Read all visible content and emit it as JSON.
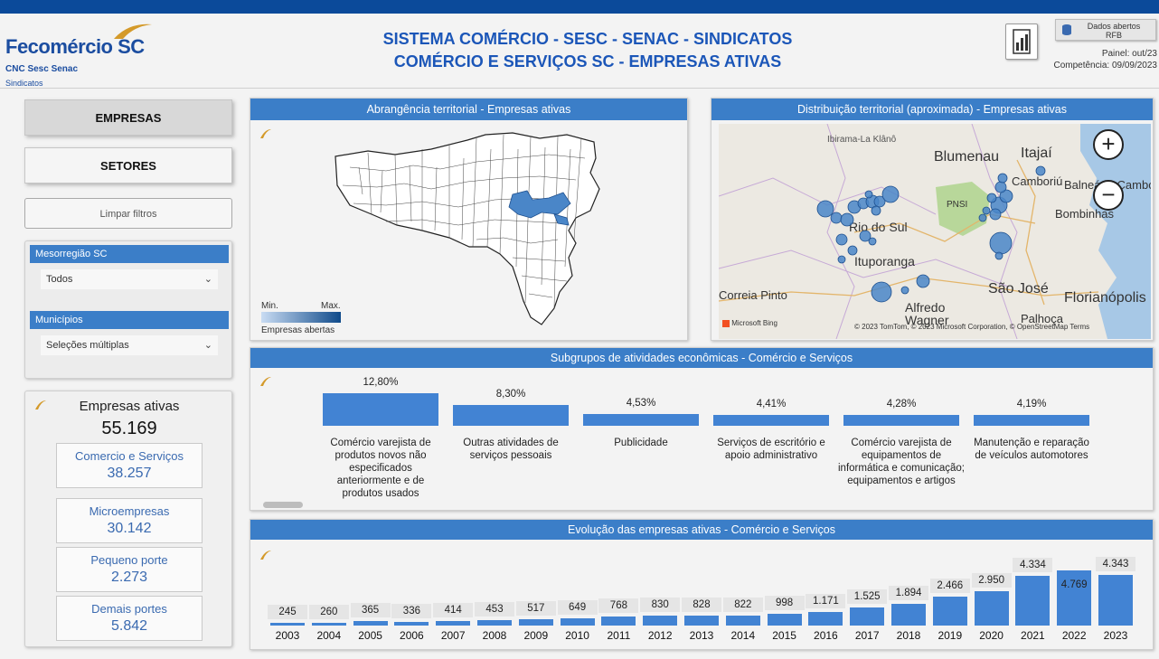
{
  "header": {
    "logo_name": "Fecomércio",
    "logo_sc": "SC",
    "logo_sub": "CNC Sesc Senac",
    "logo_sub2": "Sindicatos",
    "title_line1": "SISTEMA COMÉRCIO - SESC - SENAC - SINDICATOS",
    "title_line2": "COMÉRCIO E SERVIÇOS SC - EMPRESAS ATIVAS",
    "rfb_line1": "Dados abertos",
    "rfb_line2": "RFB",
    "painel": "Painel: out/23",
    "competencia": "Competência: 09/09/2023",
    "calc_icon": "report-calculator-icon",
    "db_icon": "database-icon"
  },
  "nav": {
    "empresas": "EMPRESAS",
    "setores": "SETORES",
    "limpar": "Limpar filtros"
  },
  "filters": {
    "meso_label": "Mesorregião SC",
    "meso_value": "Todos",
    "mun_label": "Municípios",
    "mun_value": "Seleções múltiplas"
  },
  "kpi": {
    "title": "Empresas ativas",
    "total": "55.169",
    "cards": [
      {
        "label": "Comercio e Serviços",
        "value": "38.257"
      },
      {
        "label": "Microempresas",
        "value": "30.142"
      },
      {
        "label": "Pequeno porte",
        "value": "2.273"
      },
      {
        "label": "Demais portes",
        "value": "5.842"
      }
    ]
  },
  "map1": {
    "title": "Abrangência territorial - Empresas ativas",
    "legend_min": "Min.",
    "legend_max": "Max.",
    "legend_caption": "Empresas abertas",
    "logo": "SC"
  },
  "map2": {
    "title": "Distribuição territorial (aproximada) - Empresas ativas",
    "places": [
      "Ibirama-La Klânô",
      "Blumenau",
      "Itajaí",
      "Camboriú",
      "Balneário Camboriú",
      "PNSI",
      "Bombinhas",
      "Rio do Sul",
      "Ituporanga",
      "Correia Pinto",
      "São José",
      "Florianópolis",
      "Alfredo Wagner",
      "Palhoça"
    ],
    "attrib_left": "Microsoft Bing",
    "attrib_right": "© 2023 TomTom, © 2023 Microsoft Corporation, © OpenStreetMap  Terms",
    "zoom_in": "+",
    "zoom_out": "−",
    "logo": "SC"
  },
  "subgroups": {
    "title": "Subgrupos de atividades econômicas - Comércio e Serviços",
    "logo": "SC"
  },
  "evolution": {
    "title": "Evolução das empresas ativas - Comércio e Serviços",
    "logo": "SC"
  },
  "chart_data": [
    {
      "type": "bar",
      "title": "Subgrupos de atividades econômicas - Comércio e Serviços",
      "categories": [
        "Comércio varejista de produtos novos não especificados anteriormente e de produtos usados",
        "Outras atividades de serviços pessoais",
        "Publicidade",
        "Serviços de escritório e apoio administrativo",
        "Comércio varejista de equipamentos de informática e comunicação; equipamentos e artigos",
        "Manutenção e reparação de veículos automotores"
      ],
      "values": [
        12.8,
        8.3,
        4.53,
        4.41,
        4.28,
        4.19
      ],
      "value_labels": [
        "12,80%",
        "8,30%",
        "4,53%",
        "4,41%",
        "4,28%",
        "4,19%"
      ]
    },
    {
      "type": "bar",
      "title": "Evolução das empresas ativas - Comércio e Serviços",
      "categories": [
        "2003",
        "2004",
        "2005",
        "2006",
        "2007",
        "2008",
        "2009",
        "2010",
        "2011",
        "2012",
        "2013",
        "2014",
        "2015",
        "2016",
        "2017",
        "2018",
        "2019",
        "2020",
        "2021",
        "2022",
        "2023"
      ],
      "values": [
        245,
        260,
        365,
        336,
        414,
        453,
        517,
        649,
        768,
        830,
        828,
        822,
        998,
        1171,
        1525,
        1894,
        2466,
        2950,
        4334,
        4769,
        4343
      ],
      "value_labels": [
        "245",
        "260",
        "365",
        "336",
        "414",
        "453",
        "517",
        "649",
        "768",
        "830",
        "828",
        "822",
        "998",
        "1.171",
        "1.525",
        "1.894",
        "2.466",
        "2.950",
        "4.334",
        "4.769",
        "4.343"
      ]
    }
  ],
  "colors": {
    "brand_blue": "#0b4a9a",
    "header_blue": "#3b7ec8",
    "bar_blue": "#4283d3",
    "title_blue": "#1b56b8"
  }
}
